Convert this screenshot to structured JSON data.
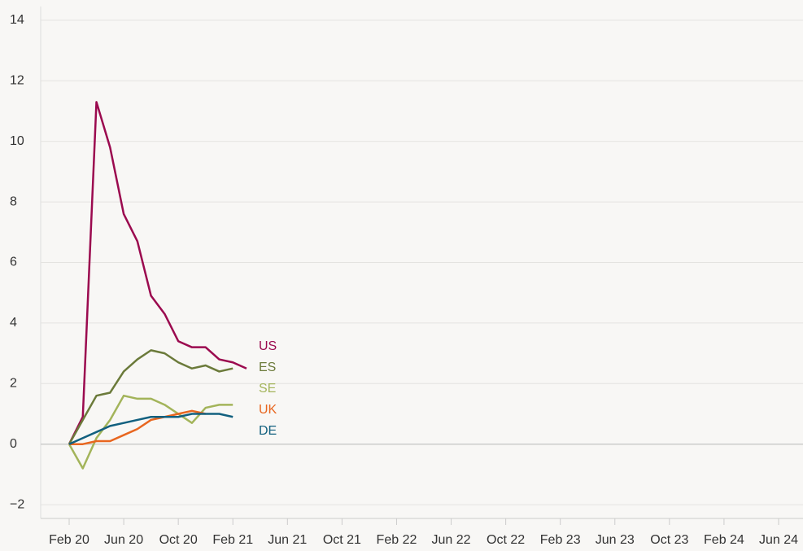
{
  "chart_data": {
    "type": "line",
    "categories": [
      "Feb 20",
      null,
      null,
      null,
      "Jun 20",
      null,
      null,
      null,
      "Oct 20",
      null,
      null,
      null,
      "Feb 21",
      null,
      null,
      null,
      "Jun 21",
      null,
      null,
      null,
      "Oct 21",
      null,
      null,
      null,
      "Feb 22",
      null,
      null,
      null,
      "Jun 22",
      null,
      null,
      null,
      "Oct 22",
      null,
      null,
      null,
      "Feb 23",
      null,
      null,
      null,
      "Jun 23",
      null,
      null,
      null,
      "Oct 23",
      null,
      null,
      null,
      "Feb 24",
      null,
      null,
      null,
      "Jun 24"
    ],
    "series": [
      {
        "name": "US",
        "color": "#9b0a4f",
        "values": [
          0,
          0.9,
          11.3,
          9.8,
          7.6,
          6.7,
          4.9,
          4.3,
          3.4,
          3.2,
          3.2,
          2.8,
          2.7,
          2.5,
          null,
          null,
          null,
          null,
          null,
          null,
          null,
          null,
          null,
          null,
          null,
          null,
          null,
          null,
          null,
          null,
          null,
          null,
          null,
          null,
          null,
          null,
          null,
          null,
          null,
          null,
          null,
          null,
          null,
          null,
          null,
          null,
          null,
          null,
          null,
          null,
          null,
          null,
          null
        ]
      },
      {
        "name": "ES",
        "color": "#6b7a3a",
        "values": [
          0,
          0.8,
          1.6,
          1.7,
          2.4,
          2.8,
          3.1,
          3.0,
          2.7,
          2.5,
          2.6,
          2.4,
          2.5,
          null,
          null,
          null,
          null,
          null,
          null,
          null,
          null,
          null,
          null,
          null,
          null,
          null,
          null,
          null,
          null,
          null,
          null,
          null,
          null,
          null,
          null,
          null,
          null,
          null,
          null,
          null,
          null,
          null,
          null,
          null,
          null,
          null,
          null,
          null,
          null,
          null,
          null,
          null,
          null
        ]
      },
      {
        "name": "SE",
        "color": "#a3b45a",
        "values": [
          0,
          -0.8,
          0.2,
          0.8,
          1.6,
          1.5,
          1.5,
          1.3,
          1.0,
          0.7,
          1.2,
          1.3,
          1.3,
          null,
          null,
          null,
          null,
          null,
          null,
          null,
          null,
          null,
          null,
          null,
          null,
          null,
          null,
          null,
          null,
          null,
          null,
          null,
          null,
          null,
          null,
          null,
          null,
          null,
          null,
          null,
          null,
          null,
          null,
          null,
          null,
          null,
          null,
          null,
          null,
          null,
          null,
          null,
          null
        ]
      },
      {
        "name": "UK",
        "color": "#e8661f",
        "values": [
          0,
          0,
          0.1,
          0.1,
          0.3,
          0.5,
          0.8,
          0.9,
          1.0,
          1.1,
          1.0,
          null,
          null,
          null,
          null,
          null,
          null,
          null,
          null,
          null,
          null,
          null,
          null,
          null,
          null,
          null,
          null,
          null,
          null,
          null,
          null,
          null,
          null,
          null,
          null,
          null,
          null,
          null,
          null,
          null,
          null,
          null,
          null,
          null,
          null,
          null,
          null,
          null,
          null,
          null,
          null,
          null,
          null
        ]
      },
      {
        "name": "DE",
        "color": "#12607f",
        "values": [
          0,
          0.2,
          0.4,
          0.6,
          0.7,
          0.8,
          0.9,
          0.9,
          0.9,
          1.0,
          1.0,
          1.0,
          0.9,
          null,
          null,
          null,
          null,
          null,
          null,
          null,
          null,
          null,
          null,
          null,
          null,
          null,
          null,
          null,
          null,
          null,
          null,
          null,
          null,
          null,
          null,
          null,
          null,
          null,
          null,
          null,
          null,
          null,
          null,
          null,
          null,
          null,
          null,
          null,
          null,
          null,
          null,
          null,
          null
        ]
      }
    ],
    "ylim": [
      -2.4,
      14.4
    ],
    "yticks": [
      {
        "value": -2,
        "label": "−2"
      },
      0,
      2,
      4,
      6,
      8,
      10,
      12,
      14
    ],
    "grid": true
  }
}
